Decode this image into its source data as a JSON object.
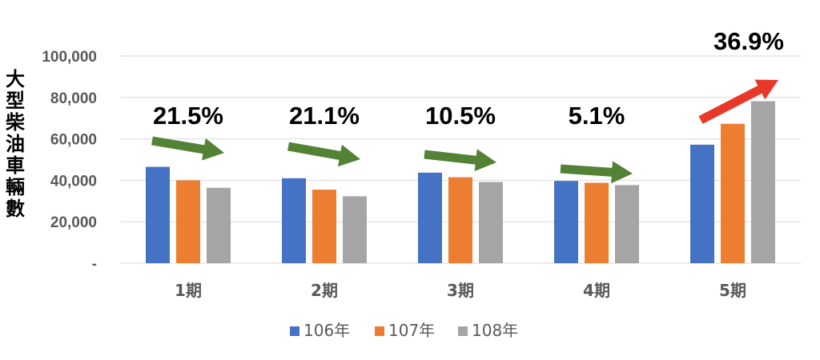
{
  "chart_data": {
    "type": "bar",
    "title": "",
    "xlabel": "",
    "ylabel": "大型柴油車輛數",
    "ylim": [
      0,
      100000
    ],
    "yticks": [
      0,
      20000,
      40000,
      60000,
      80000,
      100000
    ],
    "ytick_labels": [
      "-",
      "20,000",
      "40,000",
      "60,000",
      "80,000",
      "100,000"
    ],
    "categories": [
      "1期",
      "2期",
      "3期",
      "4期",
      "5期"
    ],
    "series": [
      {
        "name": "106年",
        "color": "#4472C4",
        "values": [
          46500,
          41000,
          43700,
          39700,
          57200
        ]
      },
      {
        "name": "107年",
        "color": "#ED7D31",
        "values": [
          40000,
          35500,
          41500,
          38800,
          67300
        ]
      },
      {
        "name": "108年",
        "color": "#A5A5A5",
        "values": [
          36400,
          32300,
          39200,
          37700,
          78200
        ]
      }
    ],
    "annotations": [
      {
        "category": "1期",
        "text": "21.5%",
        "direction": "down",
        "color": "#548235"
      },
      {
        "category": "2期",
        "text": "21.1%",
        "direction": "down",
        "color": "#548235"
      },
      {
        "category": "3期",
        "text": "10.5%",
        "direction": "down",
        "color": "#548235"
      },
      {
        "category": "4期",
        "text": "5.1%",
        "direction": "down",
        "color": "#548235"
      },
      {
        "category": "5期",
        "text": "36.9%",
        "direction": "up",
        "color": "#E8382A"
      }
    ],
    "grid": true,
    "legend": "bottom"
  }
}
